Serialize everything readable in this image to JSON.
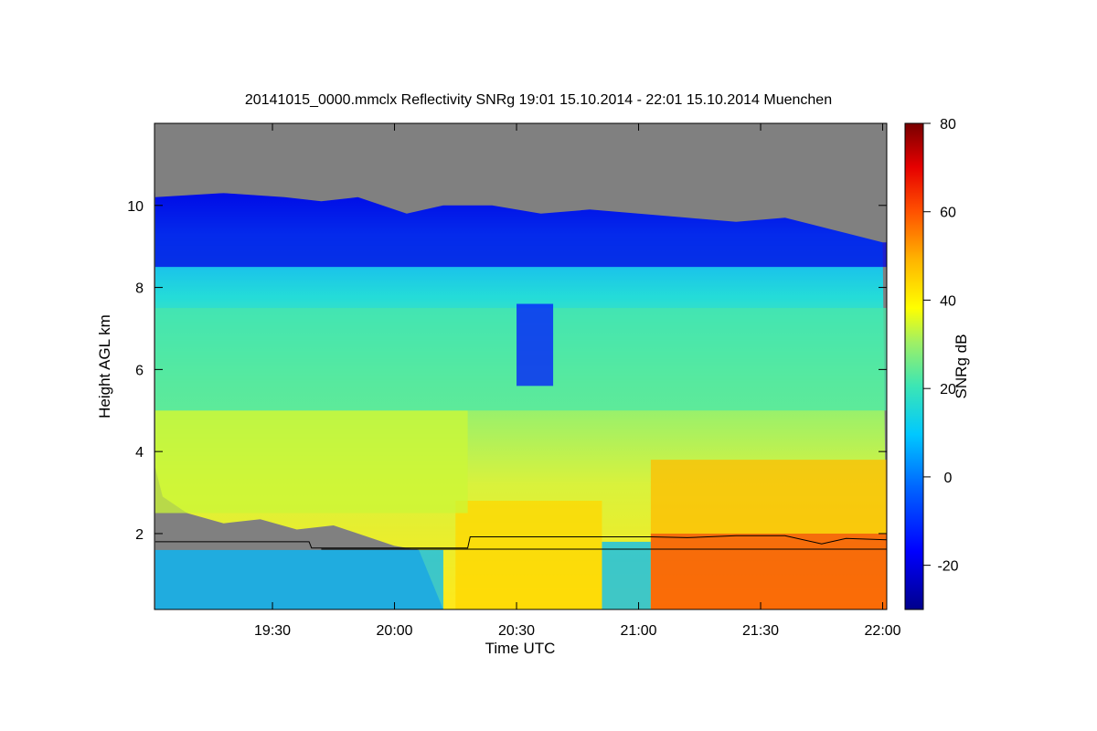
{
  "chart_data": {
    "type": "heatmap",
    "title": "20141015_0000.mmclx Reflectivity SNRg   19:01 15.10.2014 - 22:01 15.10.2014 Muenchen",
    "xlabel": "Time UTC",
    "ylabel": "Height AGL km",
    "x_range_hours": [
      19.0167,
      22.0167
    ],
    "x_ticks": [
      {
        "value": 19.5,
        "label": "19:30"
      },
      {
        "value": 20.0,
        "label": "20:00"
      },
      {
        "value": 20.5,
        "label": "20:30"
      },
      {
        "value": 21.0,
        "label": "21:00"
      },
      {
        "value": 21.5,
        "label": "21:30"
      },
      {
        "value": 22.0,
        "label": "22:00"
      }
    ],
    "ylim": [
      0.15,
      12.0
    ],
    "y_ticks": [
      {
        "value": 2,
        "label": "2"
      },
      {
        "value": 4,
        "label": "4"
      },
      {
        "value": 6,
        "label": "6"
      },
      {
        "value": 8,
        "label": "8"
      },
      {
        "value": 10,
        "label": "10"
      }
    ],
    "colorbar": {
      "label": "SNRg dB",
      "range": [
        -30,
        80
      ],
      "ticks": [
        {
          "value": -20,
          "label": "-20"
        },
        {
          "value": 0,
          "label": "0"
        },
        {
          "value": 20,
          "label": "20"
        },
        {
          "value": 40,
          "label": "40"
        },
        {
          "value": 60,
          "label": "60"
        },
        {
          "value": 80,
          "label": "80"
        }
      ]
    },
    "no_signal_color": "#808080",
    "cloud_top_km": [
      {
        "t": 19.02,
        "h": 10.2
      },
      {
        "t": 19.3,
        "h": 10.3
      },
      {
        "t": 19.55,
        "h": 10.2
      },
      {
        "t": 19.7,
        "h": 10.1
      },
      {
        "t": 19.85,
        "h": 10.2
      },
      {
        "t": 20.05,
        "h": 9.8
      },
      {
        "t": 20.2,
        "h": 10.0
      },
      {
        "t": 20.4,
        "h": 10.0
      },
      {
        "t": 20.6,
        "h": 9.8
      },
      {
        "t": 20.8,
        "h": 9.9
      },
      {
        "t": 21.0,
        "h": 9.8
      },
      {
        "t": 21.2,
        "h": 9.7
      },
      {
        "t": 21.4,
        "h": 9.6
      },
      {
        "t": 21.6,
        "h": 9.7
      },
      {
        "t": 21.8,
        "h": 9.4
      },
      {
        "t": 22.0,
        "h": 9.1
      }
    ],
    "cloud_base_km": [
      {
        "t": 19.02,
        "h": 3.6
      },
      {
        "t": 19.05,
        "h": 2.9
      },
      {
        "t": 19.15,
        "h": 2.5
      },
      {
        "t": 19.3,
        "h": 2.25
      },
      {
        "t": 19.45,
        "h": 2.35
      },
      {
        "t": 19.6,
        "h": 2.1
      },
      {
        "t": 19.75,
        "h": 2.2
      },
      {
        "t": 19.9,
        "h": 1.9
      },
      {
        "t": 20.0,
        "h": 1.7
      },
      {
        "t": 20.1,
        "h": 1.6
      },
      {
        "t": 20.2,
        "h": 0.15
      },
      {
        "t": 22.0167,
        "h": 0.15
      }
    ],
    "series": [
      {
        "points": [
          {
            "t": 19.02,
            "h": 1.8
          },
          {
            "t": 19.65,
            "h": 1.8
          },
          {
            "t": 19.66,
            "h": 1.65
          },
          {
            "t": 20.3,
            "h": 1.65
          },
          {
            "t": 20.31,
            "h": 1.92
          },
          {
            "t": 21.05,
            "h": 1.92
          },
          {
            "t": 21.2,
            "h": 1.9
          },
          {
            "t": 21.4,
            "h": 1.95
          },
          {
            "t": 21.6,
            "h": 1.95
          },
          {
            "t": 21.75,
            "h": 1.75
          },
          {
            "t": 21.85,
            "h": 1.88
          },
          {
            "t": 22.0167,
            "h": 1.85
          }
        ]
      },
      {
        "points": [
          {
            "t": 19.7,
            "h": 1.62
          },
          {
            "t": 22.0167,
            "h": 1.62
          }
        ]
      }
    ],
    "intensity_regions": [
      {
        "t0": 19.02,
        "t1": 20.2,
        "h0": 0.15,
        "h1": 1.6,
        "snr": 8
      },
      {
        "t0": 20.25,
        "t1": 20.85,
        "h0": 0.15,
        "h1": 2.8,
        "snr": 44
      },
      {
        "t0": 20.85,
        "t1": 21.05,
        "h0": 0.15,
        "h1": 1.8,
        "snr": 8
      },
      {
        "t0": 21.05,
        "t1": 22.0167,
        "h0": 0.15,
        "h1": 2.0,
        "snr": 62
      },
      {
        "t0": 21.05,
        "t1": 22.0167,
        "h0": 2.0,
        "h1": 3.8,
        "snr": 48
      },
      {
        "t0": 19.02,
        "t1": 20.3,
        "h0": 2.5,
        "h1": 5.0,
        "snr": 34
      },
      {
        "t0": 19.02,
        "t1": 22.0167,
        "h0": 5.0,
        "h1": 7.5,
        "snr": 22
      },
      {
        "t0": 20.5,
        "t1": 20.65,
        "h0": 5.6,
        "h1": 7.6,
        "snr": -14
      },
      {
        "t0": 19.02,
        "t1": 22.0167,
        "h0": 8.5,
        "h1": 10.3,
        "snr": -20
      }
    ]
  }
}
